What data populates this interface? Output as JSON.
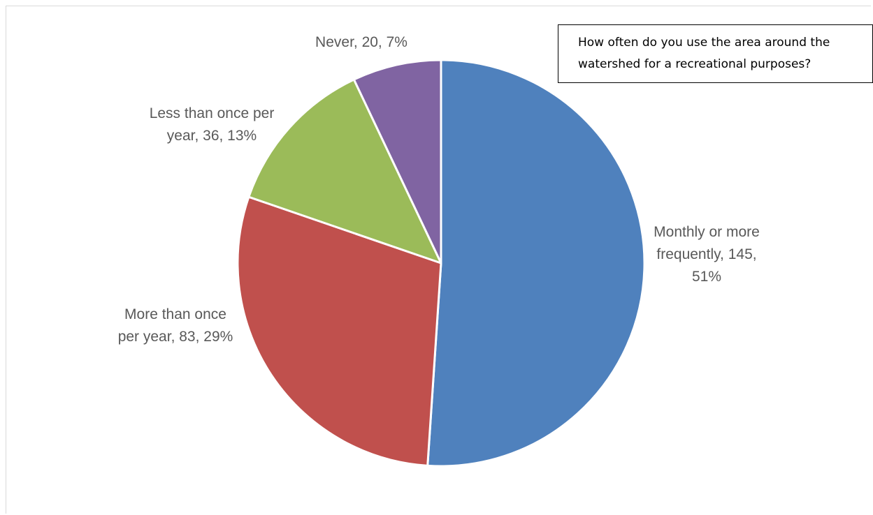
{
  "chart_data": {
    "type": "pie",
    "title": "How often do you use the area around the watershed for a recreational purposes?",
    "slices": [
      {
        "label_lines": [
          "Monthly or more",
          "frequently, 145,",
          "51%"
        ],
        "category": "Monthly or more frequently",
        "value": 145,
        "percent": 51,
        "color": "#4f81bd"
      },
      {
        "label_lines": [
          "More than once",
          "per year, 83, 29%"
        ],
        "category": "More than once per year",
        "value": 83,
        "percent": 29,
        "color": "#c0504d"
      },
      {
        "label_lines": [
          "Less than once per",
          "year, 36, 13%"
        ],
        "category": "Less than once per year",
        "value": 36,
        "percent": 13,
        "color": "#9bbb59"
      },
      {
        "label_lines": [
          "Never, 20, 7%"
        ],
        "category": "Never",
        "value": 20,
        "percent": 7,
        "color": "#8064a2"
      }
    ],
    "start_angle_deg": 0,
    "direction": "clockwise",
    "legend": "none"
  }
}
